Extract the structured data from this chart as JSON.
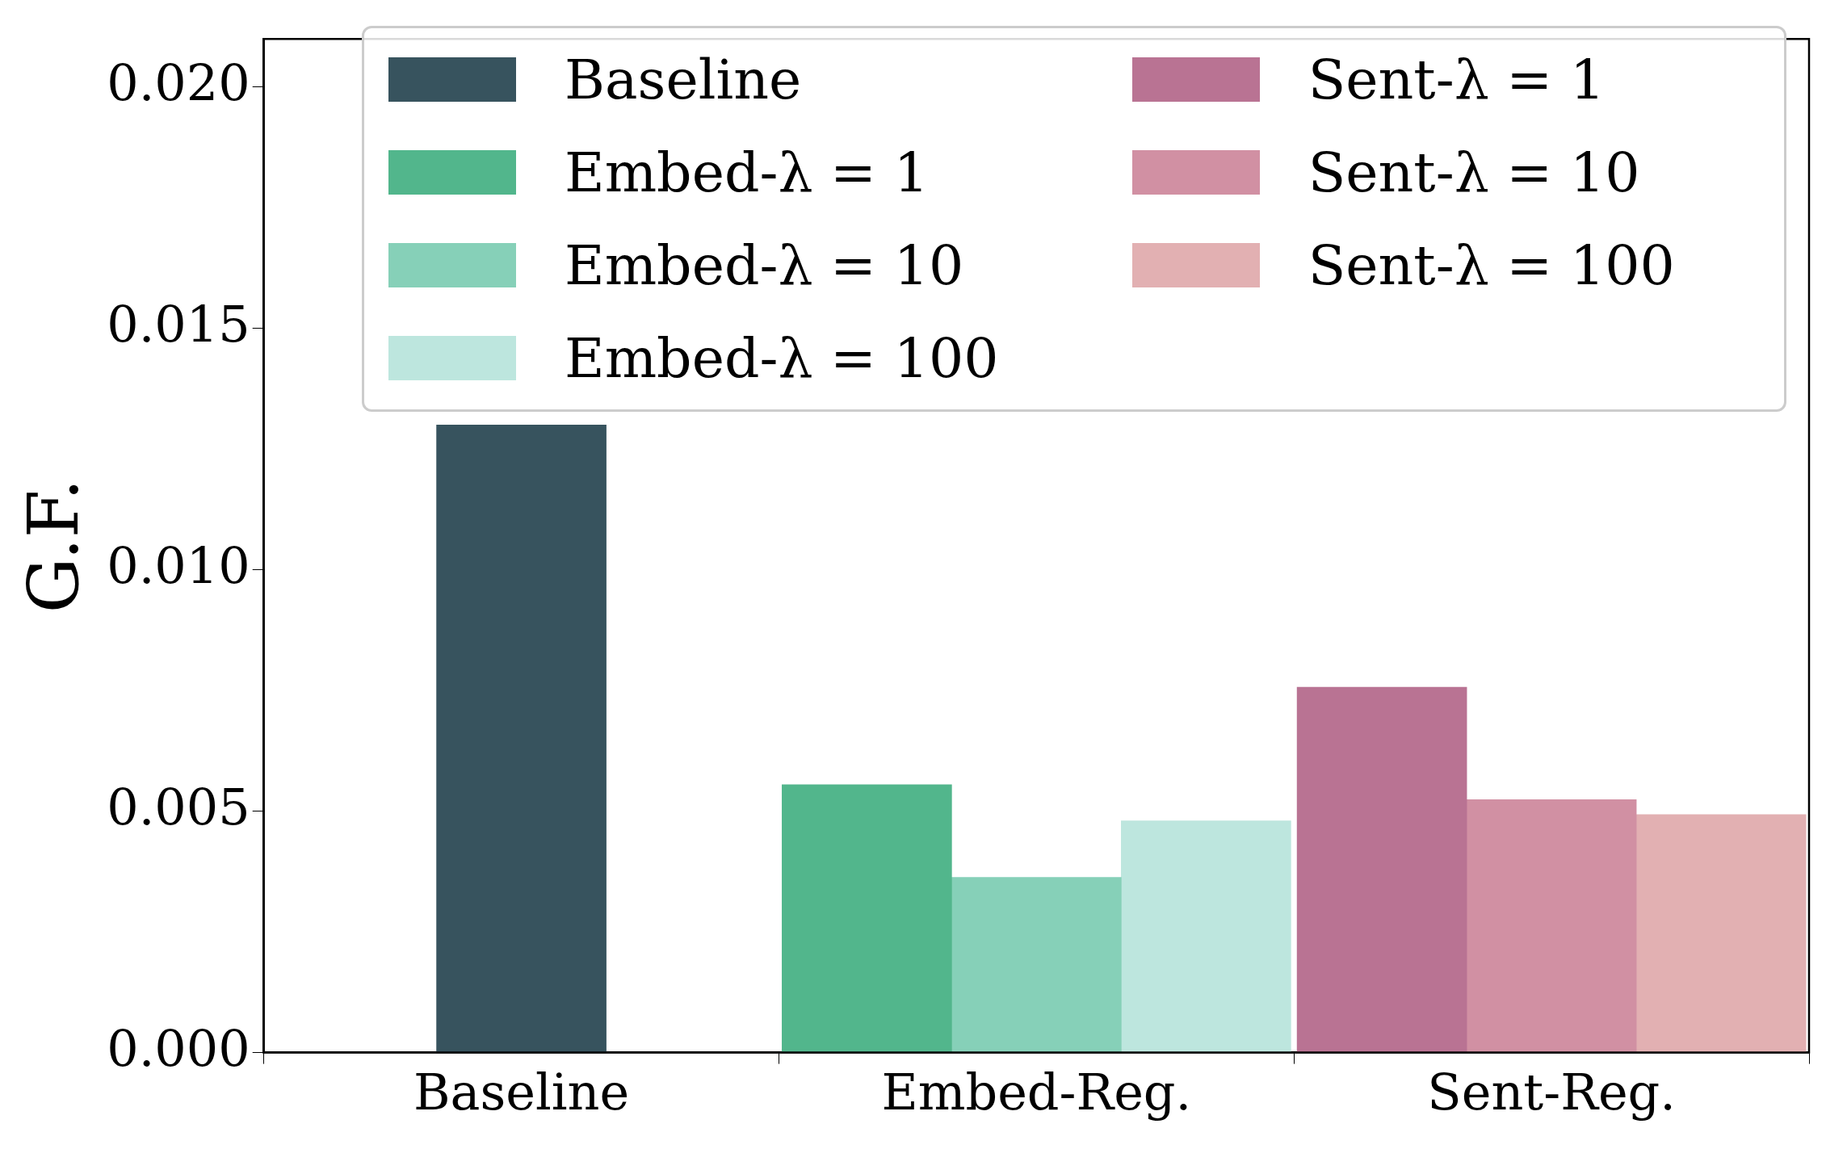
{
  "chart_data": {
    "type": "bar",
    "ylabel": "G.F.",
    "categories": [
      "Baseline",
      "Embed-Reg.",
      "Sent-Reg."
    ],
    "series": [
      {
        "name": "Baseline",
        "color": "#37535e",
        "values": [
          0.013,
          null,
          null
        ]
      },
      {
        "name": "Embed-λ = 1",
        "color": "#52b68c",
        "values": [
          null,
          0.00555,
          null
        ]
      },
      {
        "name": "Embed-λ = 10",
        "color": "#86d0b8",
        "values": [
          null,
          0.00363,
          null
        ]
      },
      {
        "name": "Embed-λ = 100",
        "color": "#bde6de",
        "values": [
          null,
          0.0048,
          null
        ]
      },
      {
        "name": "Sent-λ = 1",
        "color": "#b97393",
        "values": [
          null,
          null,
          0.00757
        ]
      },
      {
        "name": "Sent-λ = 10",
        "color": "#d190a3",
        "values": [
          null,
          null,
          0.00524
        ]
      },
      {
        "name": "Sent-λ = 100",
        "color": "#e2b0b2",
        "values": [
          null,
          null,
          0.00493
        ]
      }
    ],
    "ylim": [
      0,
      0.021
    ],
    "yticks": [
      {
        "value": 0,
        "label": "0.000"
      },
      {
        "value": 0.005,
        "label": "0.005"
      },
      {
        "value": 0.01,
        "label": "0.010"
      },
      {
        "value": 0.015,
        "label": "0.015"
      },
      {
        "value": 0.02,
        "label": "0.020"
      }
    ],
    "grid": false,
    "legend": "top"
  }
}
